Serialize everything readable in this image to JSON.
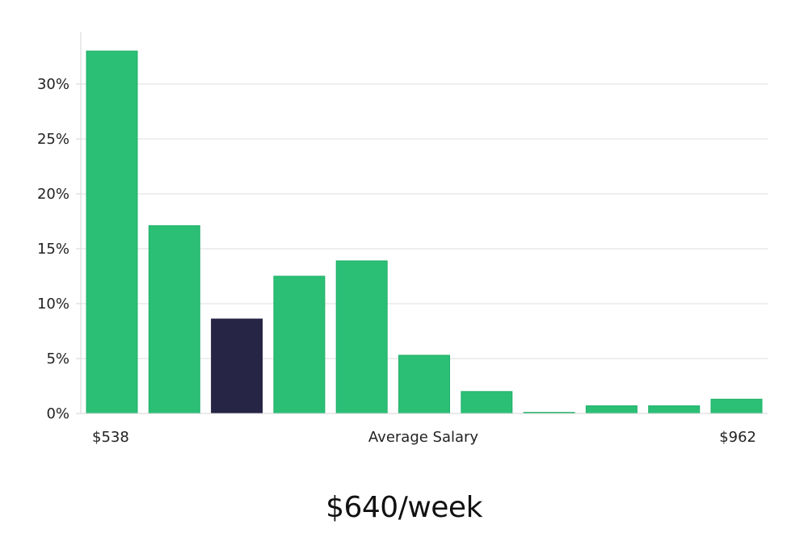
{
  "chart_data": {
    "type": "bar",
    "categories": [
      "$538",
      "",
      "",
      "",
      "",
      "",
      "",
      "",
      "",
      "",
      "$962"
    ],
    "values": [
      33.0,
      17.1,
      8.6,
      12.5,
      13.9,
      5.3,
      2.0,
      0.1,
      0.7,
      0.7,
      1.3
    ],
    "highlight_index": 2,
    "yticks": [
      "0%",
      "5%",
      "10%",
      "15%",
      "20%",
      "25%",
      "30%"
    ],
    "ylim": [
      0,
      34.5
    ],
    "xlabel": "Average Salary",
    "x_start_label": "$538",
    "x_end_label": "$962",
    "grid": true,
    "colors": {
      "bar": "#2bbf76",
      "bar_outline": "#22b06a",
      "highlight": "#262545"
    }
  },
  "caption": "$640/week"
}
